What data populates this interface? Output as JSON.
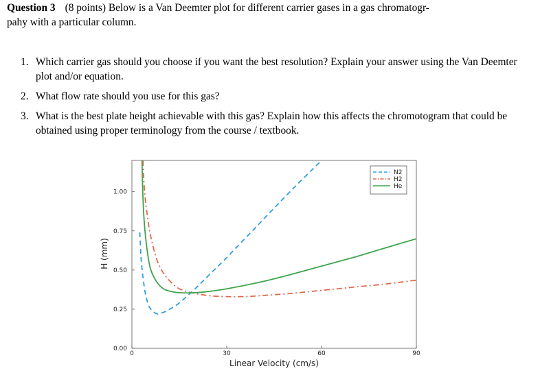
{
  "question": {
    "number": "Question 3",
    "prompt_line1": "(8 points) Below is a Van Deemter plot for different carrier gases in a gas chromatogr-",
    "prompt_line2": "pahy with a particular column."
  },
  "items": [
    {
      "num": "1.",
      "text": "Which carrier gas should you choose if you want the best resolution? Explain your answer using the Van Deemter plot and/or equation."
    },
    {
      "num": "2.",
      "text": "What flow rate should you use for this gas?"
    },
    {
      "num": "3.",
      "text": "What is the best plate height achievable with this gas? Explain how this affects the chromotogram that could be obtained using proper terminology from the course / textbook."
    }
  ],
  "chart_data": {
    "type": "line",
    "xlabel": "Linear Velocity (cm/s)",
    "ylabel": "H (mm)",
    "xlim": [
      0,
      90
    ],
    "ylim": [
      0,
      1.2
    ],
    "xticks": [
      "0",
      "30",
      "60",
      "90"
    ],
    "yticks": [
      "0.00",
      "0.25",
      "0.50",
      "0.75",
      "1.00"
    ],
    "legend_position": "top-right",
    "series": [
      {
        "name": "N2",
        "color": "#2e9fe0",
        "dash": "dashed",
        "x": [
          2.5,
          3,
          4,
          5,
          6,
          8,
          10,
          12,
          15,
          20,
          25,
          30,
          40,
          50,
          60
        ],
        "y": [
          0.74,
          0.55,
          0.38,
          0.29,
          0.25,
          0.22,
          0.23,
          0.25,
          0.29,
          0.38,
          0.48,
          0.58,
          0.79,
          1.0,
          1.2
        ]
      },
      {
        "name": "H2",
        "color": "#e2694c",
        "dash": "dashdot",
        "x": [
          3.5,
          4,
          5,
          6,
          8,
          10,
          12,
          15,
          20,
          25,
          30,
          35,
          40,
          50,
          60,
          70,
          80,
          90
        ],
        "y": [
          1.2,
          1.0,
          0.83,
          0.71,
          0.56,
          0.48,
          0.43,
          0.38,
          0.35,
          0.335,
          0.33,
          0.33,
          0.335,
          0.35,
          0.37,
          0.39,
          0.41,
          0.435
        ]
      },
      {
        "name": "He",
        "color": "#3fa34d",
        "dash": "solid",
        "x": [
          3.2,
          3.5,
          4,
          5,
          6,
          8,
          10,
          12,
          15,
          20,
          25,
          30,
          40,
          50,
          60,
          70,
          80,
          90
        ],
        "y": [
          1.2,
          0.96,
          0.78,
          0.6,
          0.5,
          0.42,
          0.38,
          0.365,
          0.355,
          0.355,
          0.365,
          0.38,
          0.42,
          0.47,
          0.525,
          0.58,
          0.64,
          0.7
        ]
      }
    ]
  }
}
